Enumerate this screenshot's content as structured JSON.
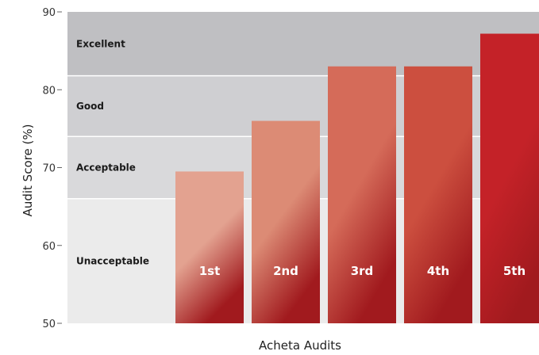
{
  "chart_data": {
    "type": "bar",
    "xlabel": "Acheta Audits",
    "ylabel": "Audit Score (%)",
    "ylim": [
      50,
      90
    ],
    "yticks": [
      50,
      60,
      70,
      80,
      90
    ],
    "categories": [
      "1st",
      "2nd",
      "3rd",
      "4th",
      "5th"
    ],
    "values": [
      69.5,
      76,
      83,
      83,
      87.2
    ],
    "bar_colors_top": [
      "#e3a290",
      "#dc8b75",
      "#d56b59",
      "#cc4f3f",
      "#c42228"
    ],
    "bar_color_bottom": "#a11a1e",
    "bands": [
      {
        "label": "Unacceptable",
        "from": 50,
        "to": 66,
        "color": "#ebebeb"
      },
      {
        "label": "Acceptable",
        "from": 66,
        "to": 74,
        "color": "#d9d9db"
      },
      {
        "label": "Good",
        "from": 74,
        "to": 81.8,
        "color": "#cfcfd2"
      },
      {
        "label": "Excellent",
        "from": 81.8,
        "to": 90,
        "color": "#bfbfc2"
      }
    ]
  }
}
